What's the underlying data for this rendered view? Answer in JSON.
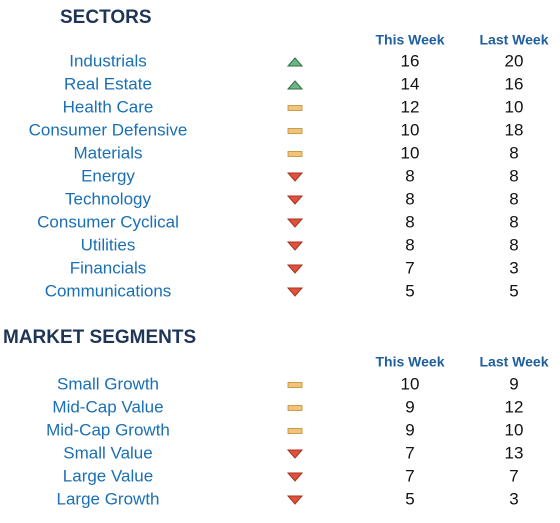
{
  "sections": [
    {
      "title": "SECTORS",
      "headers": [
        "This Week",
        "Last Week"
      ],
      "rows": [
        {
          "name": "Industrials",
          "trend": "up",
          "this_week": 16,
          "last_week": 20
        },
        {
          "name": "Real Estate",
          "trend": "up",
          "this_week": 14,
          "last_week": 16
        },
        {
          "name": "Health Care",
          "trend": "flat",
          "this_week": 12,
          "last_week": 10
        },
        {
          "name": "Consumer Defensive",
          "trend": "flat",
          "this_week": 10,
          "last_week": 18
        },
        {
          "name": "Materials",
          "trend": "flat",
          "this_week": 10,
          "last_week": 8
        },
        {
          "name": "Energy",
          "trend": "down",
          "this_week": 8,
          "last_week": 8
        },
        {
          "name": "Technology",
          "trend": "down",
          "this_week": 8,
          "last_week": 8
        },
        {
          "name": "Consumer Cyclical",
          "trend": "down",
          "this_week": 8,
          "last_week": 8
        },
        {
          "name": "Utilities",
          "trend": "down",
          "this_week": 8,
          "last_week": 8
        },
        {
          "name": "Financials",
          "trend": "down",
          "this_week": 7,
          "last_week": 3
        },
        {
          "name": "Communications",
          "trend": "down",
          "this_week": 5,
          "last_week": 5
        }
      ]
    },
    {
      "title": "MARKET SEGMENTS",
      "headers": [
        "This Week",
        "Last Week"
      ],
      "rows": [
        {
          "name": "Small Growth",
          "trend": "flat",
          "this_week": 10,
          "last_week": 9
        },
        {
          "name": "Mid-Cap Value",
          "trend": "flat",
          "this_week": 9,
          "last_week": 12
        },
        {
          "name": "Mid-Cap Growth",
          "trend": "flat",
          "this_week": 9,
          "last_week": 10
        },
        {
          "name": "Small Value",
          "trend": "down",
          "this_week": 7,
          "last_week": 13
        },
        {
          "name": "Large Value",
          "trend": "down",
          "this_week": 7,
          "last_week": 7
        },
        {
          "name": "Large Growth",
          "trend": "down",
          "this_week": 5,
          "last_week": 3
        }
      ]
    }
  ]
}
